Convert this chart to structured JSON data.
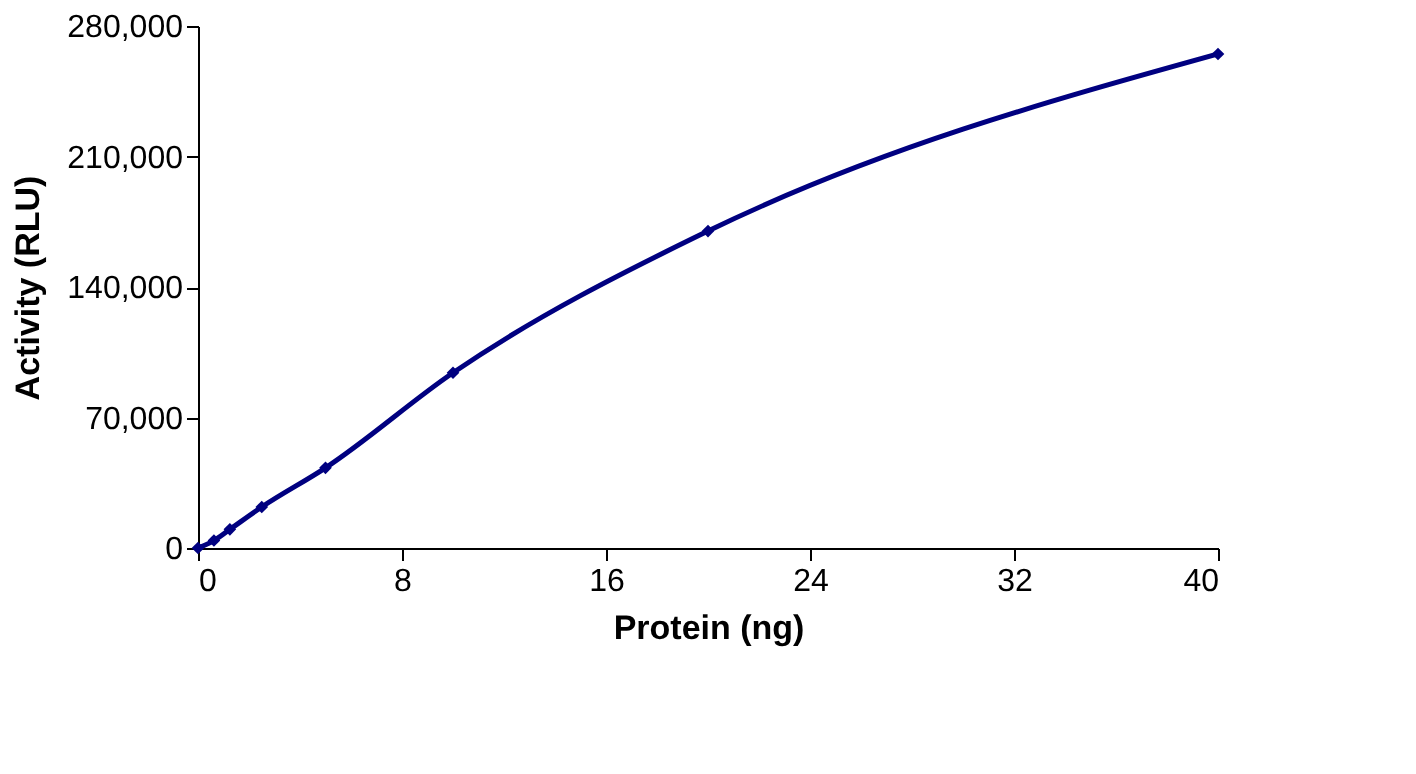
{
  "chart_data": {
    "type": "line",
    "xlabel": "Protein (ng)",
    "ylabel": "Activity (RLU)",
    "x": [
      0,
      0.625,
      1.25,
      2.5,
      5,
      10,
      20,
      40
    ],
    "series": [
      {
        "color": "#000080",
        "values": [
          0,
          4000,
          10000,
          22000,
          43000,
          94000,
          170000,
          265000
        ]
      }
    ],
    "xlim": [
      0,
      40
    ],
    "xticks": [
      0,
      8,
      16,
      24,
      32,
      40
    ],
    "ylim": [
      0,
      280000
    ],
    "yticks": [
      0,
      {
        "value": 70000,
        "label": "70,000"
      },
      {
        "value": 140000,
        "label": "140,000"
      },
      {
        "value": 210000,
        "label": "210,000"
      },
      {
        "value": 280000,
        "label": "280,000"
      }
    ],
    "grid": false,
    "legend": false,
    "marker": "diamond",
    "line_style": "solid"
  }
}
